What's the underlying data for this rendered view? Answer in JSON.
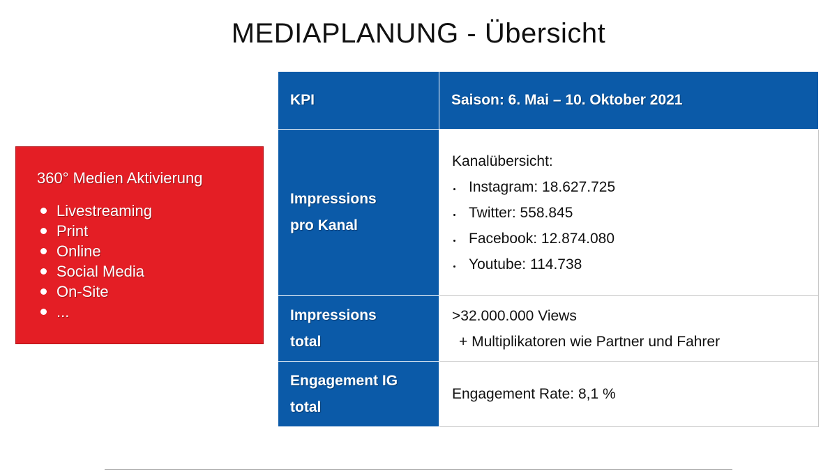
{
  "title": "MEDIAPLANUNG - Übersicht",
  "activation": {
    "heading": "360° Medien Aktivierung",
    "items": [
      "Livestreaming",
      "Print",
      "Online",
      "Social Media",
      "On-Site",
      "..."
    ]
  },
  "table": {
    "header": {
      "col1": "KPI",
      "col2": "Saison: 6. Mai – 10. Oktober 2021"
    },
    "rows": [
      {
        "key_line1": "Impressions",
        "key_line2": "pro Kanal",
        "intro": "Kanalübersicht:",
        "channels": [
          "Instagram: 18.627.725",
          "Twitter: 558.845",
          "Facebook: 12.874.080",
          "Youtube: 114.738"
        ]
      },
      {
        "key_line1": "Impressions",
        "key_line2": "total",
        "line1": ">32.000.000 Views",
        "line2": "+ Multiplikatoren wie Partner und Fahrer"
      },
      {
        "key_line1": "Engagement IG",
        "key_line2": "total",
        "line1": "Engagement Rate: 8,1 %"
      }
    ]
  },
  "colors": {
    "red": "#e41e25",
    "blue": "#0b5aa8"
  }
}
